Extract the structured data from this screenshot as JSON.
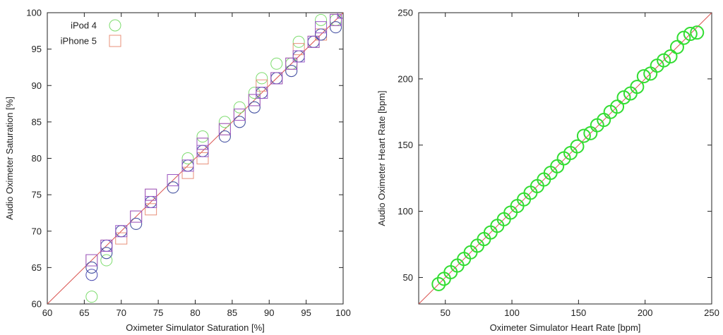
{
  "chart_data": [
    {
      "type": "scatter",
      "title": "",
      "xlabel": "Oximeter Simulator Saturation [%]",
      "ylabel": "Audio Oximeter Saturation [%]",
      "xlim": [
        60,
        100
      ],
      "ylim": [
        60,
        100
      ],
      "xticks": [
        "60",
        "65",
        "70",
        "75",
        "80",
        "85",
        "90",
        "95",
        "100"
      ],
      "yticks": [
        "60",
        "65",
        "70",
        "75",
        "80",
        "85",
        "90",
        "95",
        "100"
      ],
      "grid": false,
      "legend_position": "top-left",
      "reference_line": {
        "from": [
          60,
          60
        ],
        "to": [
          100,
          100
        ],
        "color": "#d9534f"
      },
      "series": [
        {
          "name": "iPod 4",
          "marker": "circle",
          "color": "#7ddc6e",
          "points": [
            [
              66,
              61
            ],
            [
              66,
              65
            ],
            [
              68,
              66
            ],
            [
              68,
              67
            ],
            [
              70,
              70
            ],
            [
              72,
              71
            ],
            [
              74,
              74
            ],
            [
              77,
              76
            ],
            [
              79,
              79
            ],
            [
              79,
              80
            ],
            [
              81,
              81
            ],
            [
              81,
              83
            ],
            [
              84,
              83
            ],
            [
              84,
              85
            ],
            [
              86,
              85
            ],
            [
              86,
              87
            ],
            [
              88,
              87
            ],
            [
              88,
              89
            ],
            [
              89,
              89
            ],
            [
              89,
              91
            ],
            [
              91,
              91
            ],
            [
              91,
              93
            ],
            [
              93,
              92
            ],
            [
              93,
              93
            ],
            [
              94,
              94
            ],
            [
              94,
              96
            ],
            [
              96,
              96
            ],
            [
              97,
              97
            ],
            [
              97,
              99
            ],
            [
              99,
              98
            ],
            [
              99,
              99
            ],
            [
              100,
              100
            ]
          ]
        },
        {
          "name": "iPhone 5",
          "marker": "square",
          "color": "#e8907a",
          "points": [
            [
              66,
              66
            ],
            [
              68,
              68
            ],
            [
              70,
              69
            ],
            [
              72,
              72
            ],
            [
              74,
              73
            ],
            [
              74,
              75
            ],
            [
              77,
              77
            ],
            [
              79,
              78
            ],
            [
              81,
              80
            ],
            [
              81,
              82
            ],
            [
              84,
              84
            ],
            [
              86,
              86
            ],
            [
              88,
              88
            ],
            [
              89,
              90
            ],
            [
              91,
              91
            ],
            [
              93,
              93
            ],
            [
              94,
              95
            ],
            [
              96,
              96
            ],
            [
              97,
              97
            ],
            [
              99,
              99
            ],
            [
              100,
              100
            ]
          ]
        },
        {
          "name": "",
          "marker": "circle",
          "color": "#4a4ab0",
          "points": [
            [
              66,
              64
            ],
            [
              66,
              65
            ],
            [
              68,
              67
            ],
            [
              68,
              68
            ],
            [
              70,
              70
            ],
            [
              72,
              71
            ],
            [
              74,
              74
            ],
            [
              77,
              76
            ],
            [
              79,
              79
            ],
            [
              81,
              81
            ],
            [
              84,
              83
            ],
            [
              86,
              85
            ],
            [
              88,
              87
            ],
            [
              89,
              89
            ],
            [
              91,
              91
            ],
            [
              93,
              92
            ],
            [
              94,
              94
            ],
            [
              96,
              96
            ],
            [
              97,
              97
            ],
            [
              99,
              98
            ],
            [
              100,
              100
            ]
          ]
        },
        {
          "name": "",
          "marker": "square",
          "color": "#9a5ac8",
          "points": [
            [
              66,
              66
            ],
            [
              68,
              68
            ],
            [
              70,
              70
            ],
            [
              72,
              72
            ],
            [
              74,
              74
            ],
            [
              74,
              75
            ],
            [
              77,
              77
            ],
            [
              79,
              79
            ],
            [
              81,
              81
            ],
            [
              81,
              82
            ],
            [
              84,
              84
            ],
            [
              86,
              86
            ],
            [
              88,
              88
            ],
            [
              89,
              89
            ],
            [
              91,
              91
            ],
            [
              93,
              93
            ],
            [
              94,
              94
            ],
            [
              96,
              96
            ],
            [
              97,
              98
            ],
            [
              99,
              99
            ],
            [
              100,
              100
            ]
          ]
        }
      ]
    },
    {
      "type": "scatter",
      "title": "",
      "xlabel": "Oximeter Simulator Heart Rate [bpm]",
      "ylabel": "Audio Oximeter Heart Rate [bpm]",
      "xlim": [
        30,
        250
      ],
      "ylim": [
        30,
        250
      ],
      "xticks": [
        "50",
        "100",
        "150",
        "200",
        "250"
      ],
      "yticks": [
        "50",
        "100",
        "150",
        "200",
        "250"
      ],
      "grid": false,
      "reference_line": {
        "from": [
          30,
          30
        ],
        "to": [
          250,
          250
        ],
        "color": "#d9534f"
      },
      "series": [
        {
          "name": "",
          "marker": "circle",
          "color": "#33dd33",
          "points": [
            [
              45,
              45
            ],
            [
              49,
              49
            ],
            [
              54,
              54
            ],
            [
              59,
              59
            ],
            [
              64,
              64
            ],
            [
              69,
              69
            ],
            [
              74,
              74
            ],
            [
              79,
              79
            ],
            [
              84,
              84
            ],
            [
              89,
              89
            ],
            [
              94,
              94
            ],
            [
              99,
              99
            ],
            [
              104,
              104
            ],
            [
              109,
              109
            ],
            [
              114,
              114
            ],
            [
              119,
              119
            ],
            [
              124,
              124
            ],
            [
              129,
              129
            ],
            [
              134,
              134
            ],
            [
              139,
              140
            ],
            [
              144,
              144
            ],
            [
              149,
              149
            ],
            [
              154,
              157
            ],
            [
              159,
              159
            ],
            [
              164,
              165
            ],
            [
              169,
              169
            ],
            [
              174,
              175
            ],
            [
              179,
              179
            ],
            [
              184,
              186
            ],
            [
              189,
              189
            ],
            [
              194,
              194
            ],
            [
              199,
              202
            ],
            [
              204,
              204
            ],
            [
              209,
              210
            ],
            [
              214,
              214
            ],
            [
              219,
              217
            ],
            [
              224,
              224
            ],
            [
              229,
              231
            ],
            [
              234,
              234
            ],
            [
              239,
              235
            ]
          ]
        }
      ]
    }
  ]
}
